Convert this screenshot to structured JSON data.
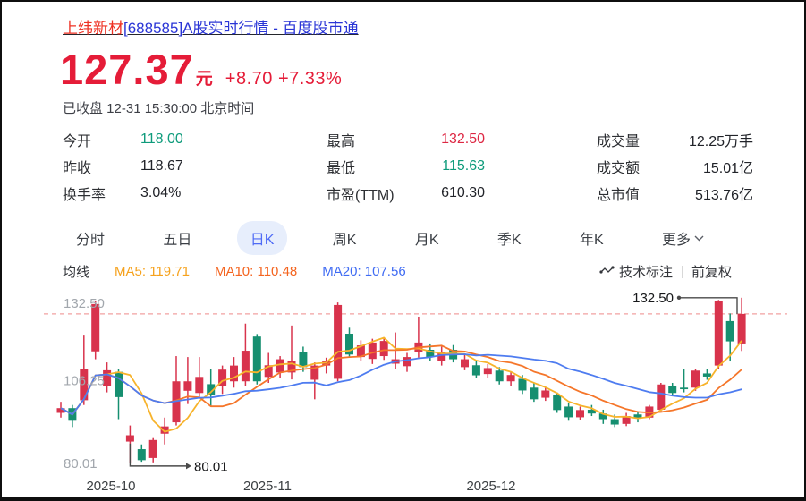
{
  "page": {
    "title_highlight": "上纬新材",
    "title_rest": "[688585]A股实时行情 - 百度股市通"
  },
  "quote": {
    "price": "127.37",
    "unit": "元",
    "change": "+8.70 +7.33%",
    "status": "已收盘 12-31 15:30:00 北京时间",
    "up_color": "#e51c38"
  },
  "stats": {
    "col1": {
      "rows": [
        {
          "label": "今开",
          "value": "118.00",
          "tone": "green"
        },
        {
          "label": "昨收",
          "value": "118.67",
          "tone": "dark"
        },
        {
          "label": "换手率",
          "value": "3.04%",
          "tone": "dark"
        }
      ]
    },
    "col2": {
      "rows": [
        {
          "label": "最高",
          "value": "132.50",
          "tone": "red"
        },
        {
          "label": "最低",
          "value": "115.63",
          "tone": "green"
        },
        {
          "label": "市盈(TTM)",
          "value": "610.30",
          "tone": "dark"
        }
      ]
    },
    "col3": {
      "rows": [
        {
          "label": "成交量",
          "value": "12.25万手",
          "tone": "dark"
        },
        {
          "label": "成交额",
          "value": "15.01亿",
          "tone": "dark"
        },
        {
          "label": "总市值",
          "value": "513.76亿",
          "tone": "dark"
        }
      ]
    }
  },
  "tabs": {
    "active": "日K",
    "items": [
      {
        "label": "分时"
      },
      {
        "label": "五日"
      },
      {
        "label": "日K"
      },
      {
        "label": "周K"
      },
      {
        "label": "月K"
      },
      {
        "label": "季K"
      },
      {
        "label": "年K"
      },
      {
        "label": "更多"
      }
    ]
  },
  "ma": {
    "title": "均线",
    "items": [
      {
        "text": "MA5: 119.71",
        "color": "#f6a21d"
      },
      {
        "text": "MA10: 110.48",
        "color": "#f4641f"
      },
      {
        "text": "MA20: 107.56",
        "color": "#3f6bf3"
      }
    ]
  },
  "tools": {
    "annotate": "技术标注",
    "adjust": "前复权"
  },
  "chart_data": {
    "type": "candlestick",
    "title": "上纬新材 688585 日K",
    "columns": [
      "open",
      "high",
      "low",
      "close"
    ],
    "up_color": "#d8334c",
    "down_color": "#168f70",
    "ma_lines": [
      {
        "period": 5,
        "color": "#f7b32b"
      },
      {
        "period": 10,
        "color": "#f5762a"
      },
      {
        "period": 20,
        "color": "#4e7cf0"
      }
    ],
    "ylim": [
      76,
      133.3
    ],
    "y_axis_labels": [
      {
        "text": "132.50",
        "price": 132.5
      },
      {
        "text": "106.25",
        "price": 106.25
      },
      {
        "text": "80.01",
        "price": 80.01
      }
    ],
    "x_axis_labels": [
      {
        "text": "2025-10",
        "frac": 0.092
      },
      {
        "text": "2025-11",
        "frac": 0.302
      },
      {
        "text": "2025-12",
        "frac": 0.601
      }
    ],
    "last_price_line": {
      "price": 127.37,
      "color": "#f2a0a0"
    },
    "annotations": {
      "low": {
        "text": "80.01",
        "index": 6,
        "price": 80.01
      },
      "high": {
        "text": "132.50",
        "index": 59,
        "price": 132.5
      }
    },
    "candles": [
      [
        96,
        99.5,
        94.5,
        97.5
      ],
      [
        97.5,
        98.5,
        91.5,
        93.5
      ],
      [
        100,
        120.5,
        98.5,
        110
      ],
      [
        115.5,
        131.5,
        113,
        130.5
      ],
      [
        104.5,
        112,
        102.5,
        109.5
      ],
      [
        109,
        110,
        94,
        101
      ],
      [
        86.9,
        92,
        80.01,
        88.9
      ],
      [
        84.5,
        86,
        80.5,
        81
      ],
      [
        81.7,
        88,
        80.3,
        87.4
      ],
      [
        89.4,
        94.5,
        86,
        91.7
      ],
      [
        93,
        114,
        92,
        106
      ],
      [
        103,
        113.7,
        98.8,
        106
      ],
      [
        102.3,
        113.7,
        101,
        107.4
      ],
      [
        105.1,
        110,
        98,
        101.7
      ],
      [
        104.5,
        111,
        102,
        109.7
      ],
      [
        106,
        113.7,
        104,
        111
      ],
      [
        106,
        124.3,
        104.5,
        115.7
      ],
      [
        120.2,
        121,
        105,
        106
      ],
      [
        107.4,
        115,
        105.5,
        111.1
      ],
      [
        108.8,
        114,
        107,
        113
      ],
      [
        108.8,
        123.7,
        106.6,
        112.5
      ],
      [
        115.4,
        117,
        109,
        110.5
      ],
      [
        106.5,
        112,
        100.3,
        111
      ],
      [
        111,
        113.5,
        108.5,
        112.5
      ],
      [
        106.8,
        131,
        106,
        130.2
      ],
      [
        121.1,
        123,
        113.5,
        114.5
      ],
      [
        113.7,
        119,
        112.5,
        117.4
      ],
      [
        113.1,
        119.5,
        111.5,
        118.3
      ],
      [
        114,
        120,
        112.8,
        118.8
      ],
      [
        111.6,
        121.5,
        109.8,
        113
      ],
      [
        110.8,
        115,
        109,
        113.7
      ],
      [
        115.4,
        126.5,
        113.5,
        118.3
      ],
      [
        116,
        118,
        112.5,
        113.7
      ],
      [
        112.5,
        117,
        111,
        115.4
      ],
      [
        116,
        117.5,
        112,
        113
      ],
      [
        110.5,
        114.5,
        109.5,
        113
      ],
      [
        111.1,
        112.5,
        107,
        107.9
      ],
      [
        108.3,
        111.5,
        107,
        110.2
      ],
      [
        109.4,
        110.5,
        105,
        106
      ],
      [
        106,
        109,
        104.5,
        108
      ],
      [
        106.8,
        108,
        102,
        103.1
      ],
      [
        104,
        105.5,
        99.5,
        100.3
      ],
      [
        100.8,
        104,
        99.8,
        103.1
      ],
      [
        101.7,
        102.5,
        96,
        96.9
      ],
      [
        98,
        99,
        93.5,
        94.6
      ],
      [
        94.6,
        98,
        93.8,
        96.9
      ],
      [
        97,
        98.5,
        95,
        95.8
      ],
      [
        95.8,
        97,
        92.5,
        94
      ],
      [
        94,
        95.5,
        91.5,
        92.3
      ],
      [
        92.5,
        96,
        91.8,
        95
      ],
      [
        95.5,
        96.5,
        93,
        94.3
      ],
      [
        94.5,
        98.5,
        94,
        98
      ],
      [
        97,
        105.5,
        96.5,
        105
      ],
      [
        104.5,
        105.5,
        101.5,
        102.3
      ],
      [
        104,
        110,
        102.5,
        103.5
      ],
      [
        104,
        110,
        103,
        109.4
      ],
      [
        108.5,
        110,
        106.5,
        107.5
      ],
      [
        111,
        131.8,
        110,
        131.5
      ],
      [
        125.1,
        127.5,
        112.3,
        118.67
      ],
      [
        118,
        132.5,
        115.63,
        127.37
      ]
    ]
  }
}
